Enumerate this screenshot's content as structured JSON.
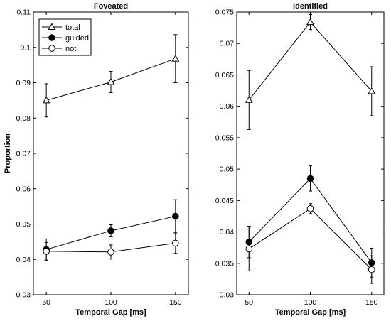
{
  "chart_data": [
    {
      "type": "line",
      "title": "Foveated",
      "xlabel": "Temporal Gap [ms]",
      "ylabel": "Proportion",
      "x": [
        50,
        100,
        150
      ],
      "xlim": [
        40,
        160
      ],
      "xticks": [
        "50",
        "100",
        "150"
      ],
      "ylim": [
        0.03,
        0.11
      ],
      "yticks": [
        "0.03",
        "0.04",
        "0.05",
        "0.06",
        "0.07",
        "0.08",
        "0.09",
        "0.1",
        "0.11"
      ],
      "series": [
        {
          "name": "total",
          "marker": "triangle-open",
          "values": [
            0.085,
            0.0902,
            0.0968
          ],
          "err": [
            0.0047,
            0.003,
            0.0068
          ]
        },
        {
          "name": "guided",
          "marker": "circle-filled",
          "values": [
            0.0428,
            0.0481,
            0.0522
          ],
          "err": [
            0.003,
            0.0017,
            0.0047
          ]
        },
        {
          "name": "not",
          "marker": "circle-open",
          "values": [
            0.0423,
            0.0421,
            0.0446
          ],
          "err": [
            0.0025,
            0.002,
            0.0029
          ]
        }
      ],
      "legend": "top-left",
      "grid": false
    },
    {
      "type": "line",
      "title": "Identified",
      "xlabel": "Temporal Gap [ms]",
      "ylabel": "",
      "x": [
        50,
        100,
        150
      ],
      "xlim": [
        40,
        160
      ],
      "xticks": [
        "50",
        "100",
        "150"
      ],
      "ylim": [
        0.03,
        0.075
      ],
      "yticks": [
        "0.03",
        "0.035",
        "0.04",
        "0.045",
        "0.05",
        "0.055",
        "0.06",
        "0.065",
        "0.07",
        "0.075"
      ],
      "series": [
        {
          "name": "total",
          "marker": "triangle-open",
          "values": [
            0.061,
            0.0734,
            0.0624
          ],
          "err": [
            0.0047,
            0.0012,
            0.0039
          ]
        },
        {
          "name": "guided",
          "marker": "circle-filled",
          "values": [
            0.0384,
            0.0485,
            0.0351
          ],
          "err": [
            0.0025,
            0.002,
            0.0023
          ]
        },
        {
          "name": "not",
          "marker": "circle-open",
          "values": [
            0.0373,
            0.0437,
            0.034
          ],
          "err": [
            0.0035,
            0.0008,
            0.0022
          ]
        }
      ],
      "grid": false
    }
  ]
}
